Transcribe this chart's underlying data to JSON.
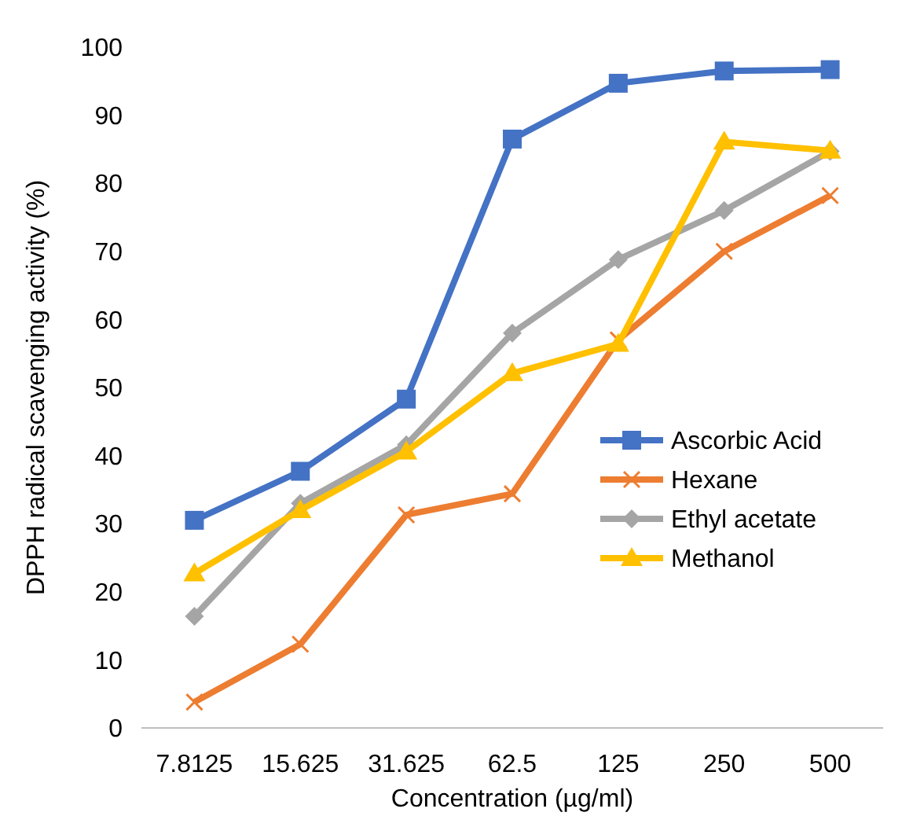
{
  "chart_data": {
    "type": "line",
    "xlabel": "Concentration (µg/ml)",
    "ylabel": "DPPH radical scavenging activity (%)",
    "categories": [
      "7.8125",
      "15.625",
      "31.625",
      "62.5",
      "125",
      "250",
      "500"
    ],
    "ylim": [
      0,
      100
    ],
    "yticks": [
      0,
      10,
      20,
      30,
      40,
      50,
      60,
      70,
      80,
      90,
      100
    ],
    "grid": false,
    "legend": "right",
    "line_style": "solid",
    "series": [
      {
        "name": "Ascorbic Acid",
        "color": "#4472c4",
        "marker": "square",
        "values": [
          30.5,
          37.7,
          48.3,
          86.5,
          94.7,
          96.5,
          96.7
        ]
      },
      {
        "name": "Hexane",
        "color": "#ed7d31",
        "marker": "cross",
        "values": [
          3.8,
          12.3,
          31.3,
          34.4,
          57,
          70,
          78.2
        ]
      },
      {
        "name": "Ethyl acetate",
        "color": "#a5a5a5",
        "marker": "diamond",
        "values": [
          16.4,
          33,
          41.6,
          58,
          68.8,
          76,
          84.7
        ]
      },
      {
        "name": "Methanol",
        "color": "#ffc000",
        "marker": "triangle",
        "values": [
          22.7,
          32,
          40.6,
          52.1,
          56.4,
          86.1,
          84.8
        ]
      }
    ]
  }
}
